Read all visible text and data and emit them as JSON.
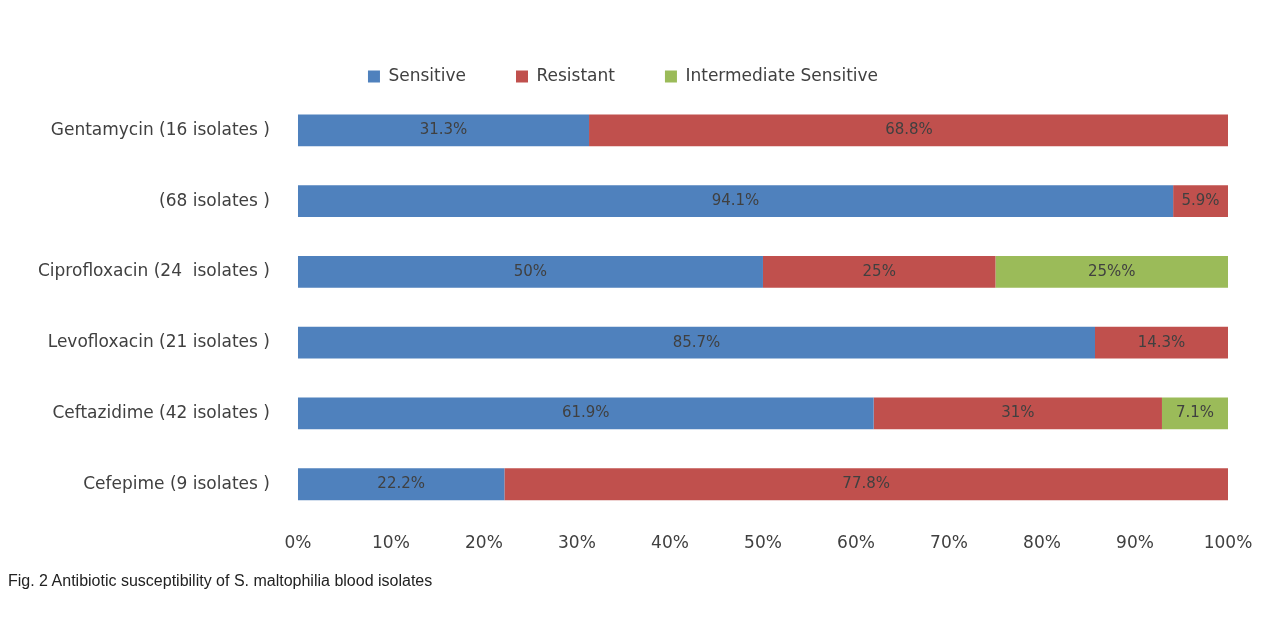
{
  "chart_data": {
    "type": "bar",
    "orientation": "horizontal",
    "stacked": true,
    "categories": [
      "Gentamycin (16 isolates )",
      "(68 isolates )",
      "Ciprofloxacin (24  isolates )",
      "Levofloxacin (21 isolates )",
      "Ceftazidime (42 isolates )",
      "Cefepime (9 isolates )"
    ],
    "series": [
      {
        "name": "Sensitive",
        "color": "#4f81bd",
        "values": [
          31.3,
          94.1,
          50,
          85.7,
          61.9,
          22.2
        ],
        "value_labels": [
          "31.3%",
          "94.1%",
          "50%",
          "85.7%",
          "61.9%",
          "22.2%"
        ]
      },
      {
        "name": "Resistant",
        "color": "#c0504d",
        "values": [
          68.8,
          5.9,
          25,
          14.3,
          31,
          77.8
        ],
        "value_labels": [
          "68.8%",
          "5.9%",
          "25%",
          "14.3%",
          "31%",
          "77.8%"
        ]
      },
      {
        "name": "Intermediate Sensitive",
        "color": "#9bbb59",
        "values": [
          null,
          null,
          25,
          null,
          7.1,
          null
        ],
        "value_labels": [
          null,
          null,
          "25%%",
          null,
          "7.1%",
          null
        ]
      }
    ],
    "xlim": [
      0,
      100
    ],
    "xticks": [
      {
        "value": 0,
        "label": "0%"
      },
      {
        "value": 10,
        "label": "10%"
      },
      {
        "value": 20,
        "label": "20%"
      },
      {
        "value": 30,
        "label": "30%"
      },
      {
        "value": 40,
        "label": "40%"
      },
      {
        "value": 50,
        "label": "50%"
      },
      {
        "value": 60,
        "label": "60%"
      },
      {
        "value": 70,
        "label": "70%"
      },
      {
        "value": 80,
        "label": "80%"
      },
      {
        "value": 90,
        "label": "90%"
      },
      {
        "value": 100,
        "label": "100%"
      }
    ],
    "grid": false,
    "legend": "top",
    "annotations": [
      "Fig. 2  Antibiotic susceptibility of S. maltophilia blood isolates"
    ]
  }
}
